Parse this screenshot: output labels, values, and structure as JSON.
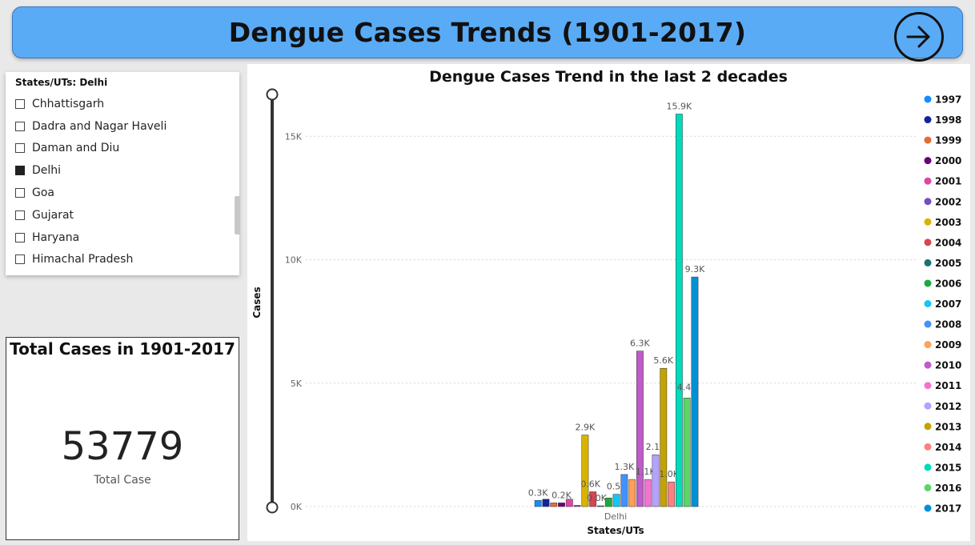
{
  "header": {
    "title": "Dengue Cases Trends (1901-2017)",
    "nav_icon": "arrow-right-circle-icon",
    "color": "#5aabf5"
  },
  "slicer": {
    "header": "States/UTs: Delhi",
    "items": [
      {
        "label": "Chhattisgarh",
        "checked": false
      },
      {
        "label": "Dadra and Nagar Haveli",
        "checked": false
      },
      {
        "label": "Daman and Diu",
        "checked": false
      },
      {
        "label": "Delhi",
        "checked": true
      },
      {
        "label": "Goa",
        "checked": false
      },
      {
        "label": "Gujarat",
        "checked": false
      },
      {
        "label": "Haryana",
        "checked": false
      },
      {
        "label": "Himachal Pradesh",
        "checked": false
      }
    ]
  },
  "card": {
    "title": "Total Cases in 1901-2017",
    "value": "53779",
    "label": "Total Case"
  },
  "chart_data": {
    "type": "bar",
    "title": "Dengue Cases Trend in the last 2 decades",
    "xlabel": "States/UTs",
    "ylabel": "Cases",
    "categories": [
      "Delhi"
    ],
    "ylim": [
      0,
      15900
    ],
    "yticks": [
      0,
      5000,
      10000,
      15000
    ],
    "ytick_labels": [
      "0K",
      "5K",
      "10K",
      "15K"
    ],
    "grid": true,
    "legend_position": "right",
    "series": [
      {
        "name": "1997",
        "value": 250,
        "label": "0.3K",
        "color": "#118dff"
      },
      {
        "name": "1998",
        "value": 300,
        "label": "",
        "color": "#12239e"
      },
      {
        "name": "1999",
        "value": 150,
        "label": "",
        "color": "#e66c37"
      },
      {
        "name": "2000",
        "value": 150,
        "label": "0.2K",
        "color": "#6b007b"
      },
      {
        "name": "2001",
        "value": 300,
        "label": "",
        "color": "#e044a7"
      },
      {
        "name": "2002",
        "value": 50,
        "label": "",
        "color": "#744ec2"
      },
      {
        "name": "2003",
        "value": 2900,
        "label": "2.9K",
        "color": "#d9b300"
      },
      {
        "name": "2004",
        "value": 600,
        "label": "0.6K",
        "color": "#d64550"
      },
      {
        "name": "2005",
        "value": 0,
        "label": "0.0K",
        "color": "#197278"
      },
      {
        "name": "2006",
        "value": 350,
        "label": "",
        "color": "#1aab40"
      },
      {
        "name": "2007",
        "value": 500,
        "label": "0.5K",
        "color": "#15c6f4"
      },
      {
        "name": "2008",
        "value": 1300,
        "label": "1.3K",
        "color": "#4092ff"
      },
      {
        "name": "2009",
        "value": 1100,
        "label": "",
        "color": "#ffa058"
      },
      {
        "name": "2010",
        "value": 6300,
        "label": "6.3K",
        "color": "#be5dc9"
      },
      {
        "name": "2011",
        "value": 1100,
        "label": "1.1K",
        "color": "#f472d0"
      },
      {
        "name": "2012",
        "value": 2100,
        "label": "2.1K",
        "color": "#b5a1ff"
      },
      {
        "name": "2013",
        "value": 5600,
        "label": "5.6K",
        "color": "#c4a200"
      },
      {
        "name": "2014",
        "value": 1000,
        "label": "1.0K",
        "color": "#ff8080"
      },
      {
        "name": "2015",
        "value": 15900,
        "label": "15.9K",
        "color": "#00dbbc"
      },
      {
        "name": "2016",
        "value": 4400,
        "label": "4.4K",
        "color": "#5bd667"
      },
      {
        "name": "2017",
        "value": 9300,
        "label": "9.3K",
        "color": "#0091d5"
      }
    ]
  }
}
